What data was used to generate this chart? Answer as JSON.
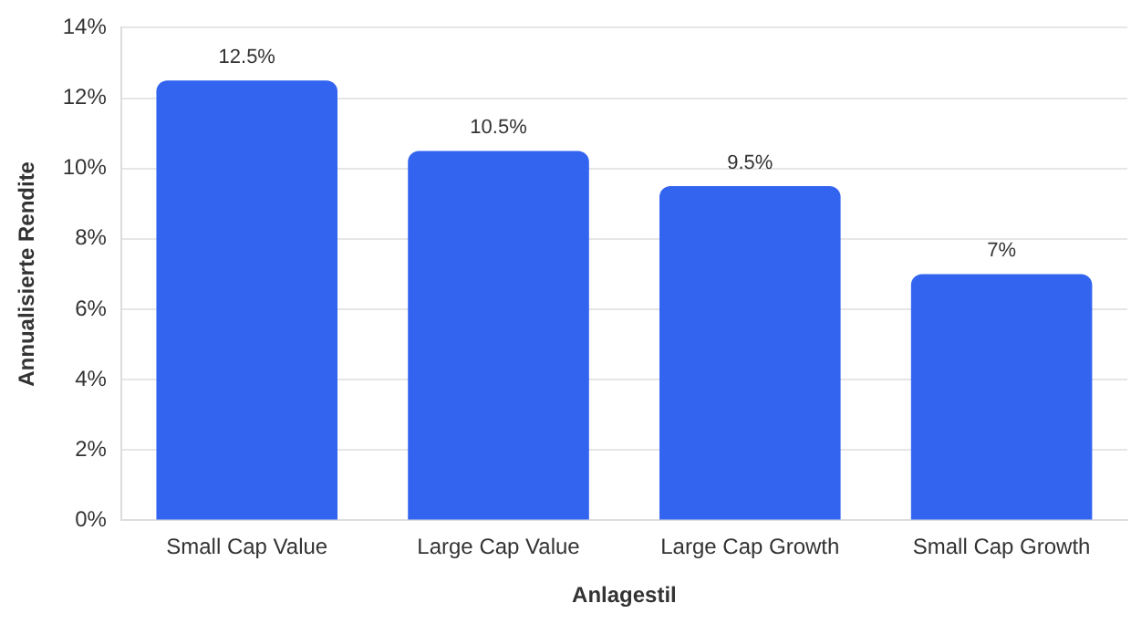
{
  "chart_data": {
    "type": "bar",
    "xlabel": "Anlagestil",
    "ylabel": "Annualisierte Rendite",
    "categories": [
      "Small Cap Value",
      "Large Cap Value",
      "Large Cap Growth",
      "Small Cap Growth"
    ],
    "values": [
      12.5,
      10.5,
      9.5,
      7
    ],
    "value_labels": [
      "12.5%",
      "10.5%",
      "9.5%",
      "7%"
    ],
    "color": "#3264f0",
    "ylim": [
      0,
      14
    ],
    "yticks": [
      {
        "value": 0,
        "label": "0%"
      },
      {
        "value": 2,
        "label": "2%"
      },
      {
        "value": 4,
        "label": "4%"
      },
      {
        "value": 6,
        "label": "6%"
      },
      {
        "value": 8,
        "label": "8%"
      },
      {
        "value": 10,
        "label": "10%"
      },
      {
        "value": 12,
        "label": "12%"
      },
      {
        "value": 14,
        "label": "14%"
      }
    ],
    "grid": "y",
    "legend": false
  }
}
